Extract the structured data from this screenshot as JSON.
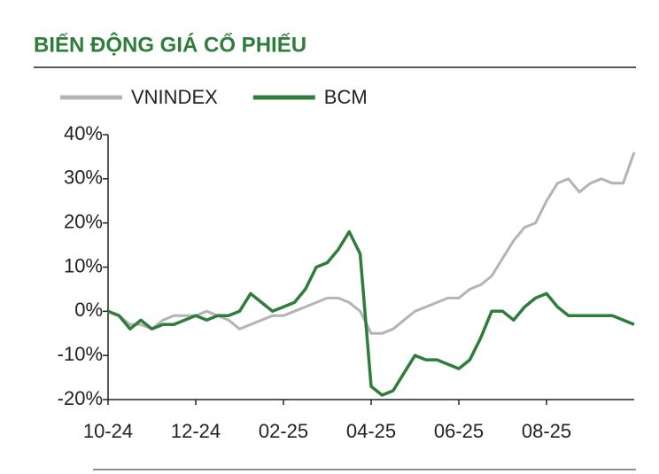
{
  "chart_data": {
    "type": "line",
    "title": "BIẾN ĐỘNG GIÁ CỔ PHIẾU",
    "categories": [
      "10-24",
      null,
      null,
      null,
      null,
      null,
      null,
      null,
      "12-24",
      null,
      null,
      null,
      null,
      null,
      null,
      null,
      "02-25",
      null,
      null,
      null,
      null,
      null,
      null,
      null,
      "04-25",
      null,
      null,
      null,
      null,
      null,
      null,
      null,
      "06-25",
      null,
      null,
      null,
      null,
      null,
      null,
      null,
      "08-25",
      null,
      null,
      null,
      null,
      null,
      null,
      null,
      null
    ],
    "series": [
      {
        "name": "VNINDEX",
        "color": "#b4b4b4",
        "values": [
          0,
          -1,
          -3,
          -3,
          -4,
          -2,
          -1,
          -1,
          -1,
          0,
          -1,
          -2,
          -4,
          -3,
          -2,
          -1,
          -1,
          0,
          1,
          2,
          3,
          3,
          2,
          0,
          -5,
          -5,
          -4,
          -2,
          0,
          1,
          2,
          3,
          3,
          5,
          6,
          8,
          12,
          16,
          19,
          20,
          25,
          29,
          30,
          27,
          29,
          30,
          29,
          29,
          36
        ]
      },
      {
        "name": "BCM",
        "color": "#2e7d3a",
        "values": [
          0,
          -1,
          -4,
          -2,
          -4,
          -3,
          -3,
          -2,
          -1,
          -2,
          -1,
          -1,
          0,
          4,
          2,
          0,
          1,
          2,
          5,
          10,
          11,
          14,
          18,
          13,
          -17,
          -19,
          -18,
          -14,
          -10,
          -11,
          -11,
          -12,
          -13,
          -11,
          -6,
          0,
          0,
          -2,
          1,
          3,
          4,
          1,
          -1,
          -1,
          -1,
          -1,
          -1,
          -2,
          -3
        ]
      }
    ],
    "ylim": [
      -20,
      40
    ],
    "yticks": [
      {
        "value": -20,
        "label": "-20%"
      },
      {
        "value": -10,
        "label": "-10%"
      },
      {
        "value": 0,
        "label": "0%"
      },
      {
        "value": 10,
        "label": "10%"
      },
      {
        "value": 20,
        "label": "20%"
      },
      {
        "value": 30,
        "label": "30%"
      },
      {
        "value": 40,
        "label": "40%"
      }
    ],
    "legend": "top-left"
  }
}
